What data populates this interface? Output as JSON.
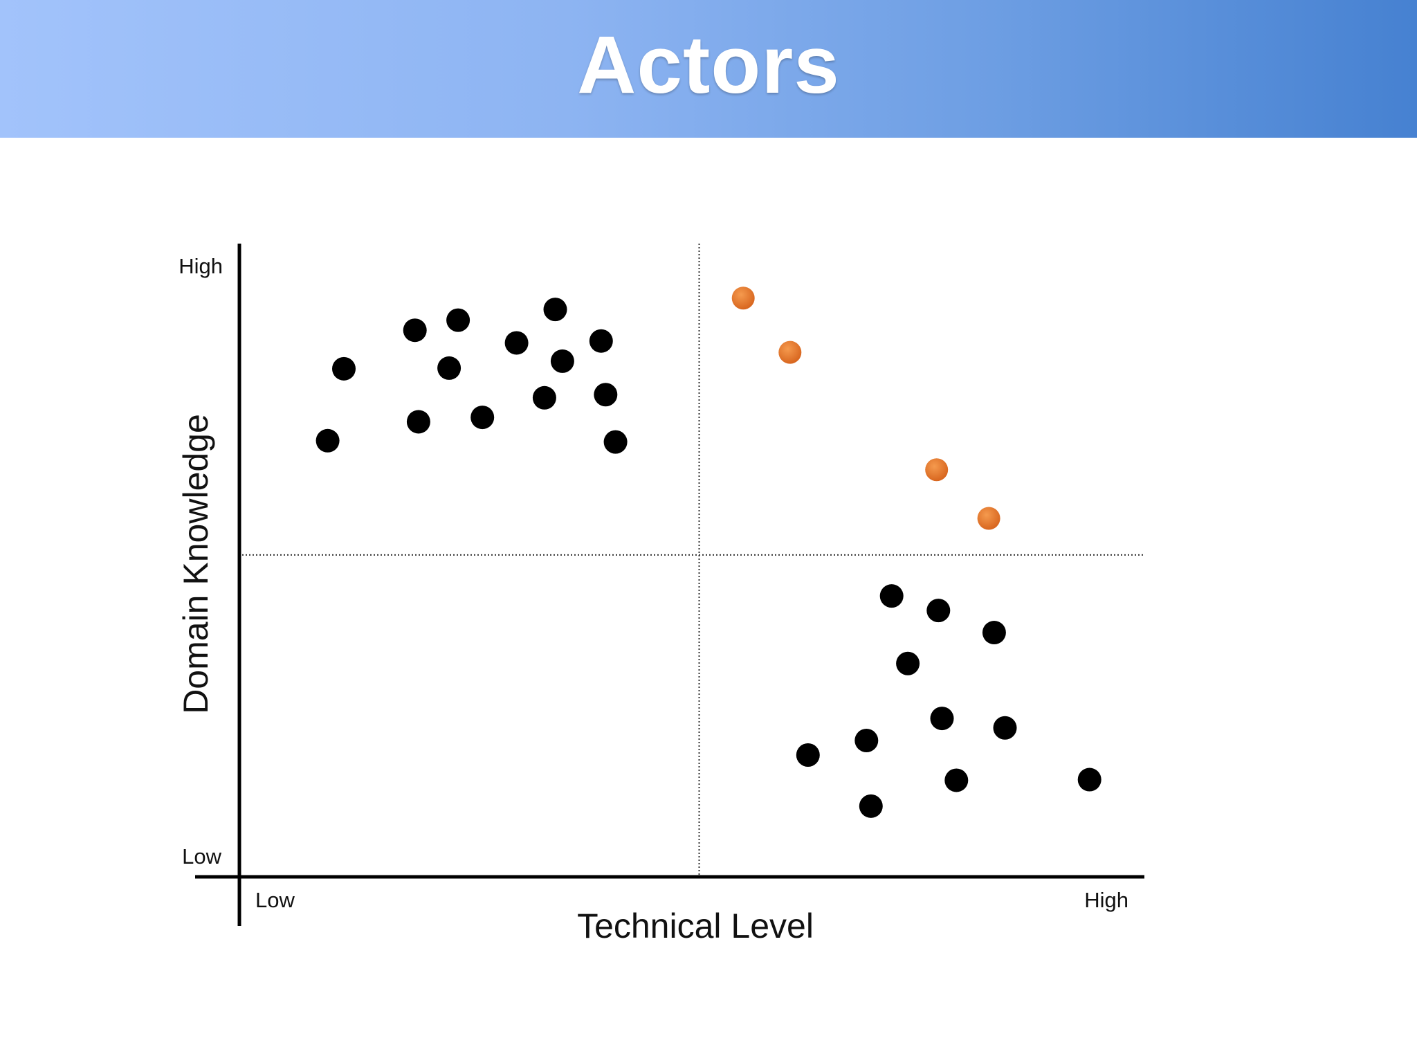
{
  "slide": {
    "title": "Actors"
  },
  "chart_data": {
    "type": "scatter",
    "title": "Actors",
    "xlabel": "Technical Level",
    "ylabel": "Domain Knowledge",
    "x_tick_labels": [
      "Low",
      "High"
    ],
    "y_tick_labels": [
      "Low",
      "High"
    ],
    "xlim": [
      0,
      100
    ],
    "ylim": [
      0,
      100
    ],
    "grid": false,
    "dividers": {
      "x": 50.5,
      "y": 51
    },
    "colors": {
      "group-a": "#000000",
      "group-b": "#000000",
      "highlight": "#e07128",
      "axis": "#000000"
    },
    "series": [
      {
        "key": "group-a",
        "color": "#000000",
        "points": [
          [
            9.2,
            69.1
          ],
          [
            11.0,
            80.5
          ],
          [
            18.9,
            86.6
          ],
          [
            19.3,
            72.1
          ],
          [
            22.7,
            80.6
          ],
          [
            23.7,
            88.2
          ],
          [
            26.4,
            72.8
          ],
          [
            30.2,
            84.6
          ],
          [
            33.3,
            75.9
          ],
          [
            34.5,
            89.9
          ],
          [
            35.3,
            81.7
          ],
          [
            39.6,
            84.9
          ],
          [
            40.1,
            76.4
          ],
          [
            41.2,
            68.9
          ]
        ]
      },
      {
        "key": "group-b",
        "color": "#000000",
        "points": [
          [
            62.6,
            19.3
          ],
          [
            69.1,
            21.6
          ],
          [
            69.6,
            11.2
          ],
          [
            71.9,
            44.5
          ],
          [
            73.7,
            33.8
          ],
          [
            77.1,
            42.2
          ],
          [
            77.5,
            25.1
          ],
          [
            79.1,
            15.3
          ],
          [
            83.3,
            38.7
          ],
          [
            84.5,
            23.6
          ],
          [
            93.9,
            15.4
          ]
        ]
      },
      {
        "key": "highlight",
        "color": "#e07128",
        "points": [
          [
            55.4,
            91.7
          ],
          [
            60.6,
            83.1
          ],
          [
            76.9,
            64.5
          ],
          [
            82.7,
            56.8
          ]
        ]
      }
    ]
  }
}
